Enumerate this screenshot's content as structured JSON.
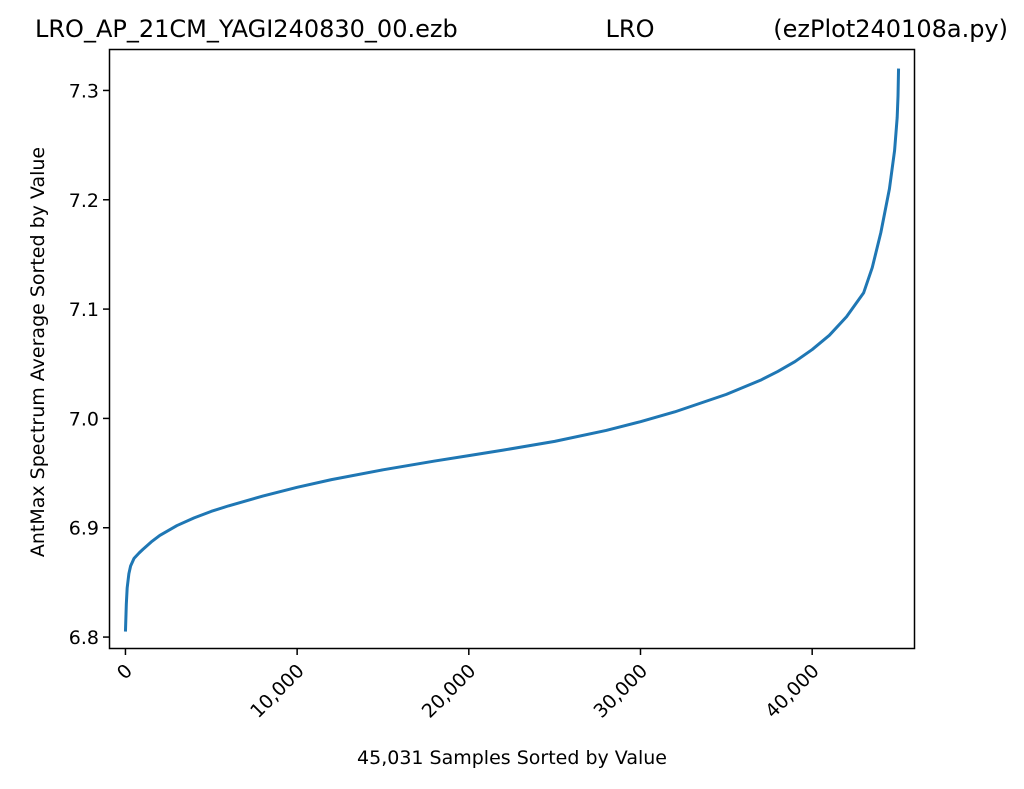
{
  "chart_data": {
    "type": "line",
    "title_left": "LRO_AP_21CM_YAGI240830_00.ezb",
    "title_center": "LRO",
    "title_right": "(ezPlot240108a.py)",
    "xlabel": "45,031 Samples Sorted by Value",
    "ylabel": "AntMax Spectrum Average Sorted by Value",
    "xlim": [
      -900,
      45931
    ],
    "ylim": [
      6.79,
      7.337
    ],
    "x_ticks": [
      0,
      10000,
      20000,
      30000,
      40000
    ],
    "x_tick_labels": [
      "0",
      "10,000",
      "20,000",
      "30,000",
      "40,000"
    ],
    "y_ticks": [
      6.8,
      6.9,
      7.0,
      7.1,
      7.2,
      7.3
    ],
    "y_tick_labels": [
      "6.8",
      "6.9",
      "7.0",
      "7.1",
      "7.2",
      "7.3"
    ],
    "grid": false,
    "series": [
      {
        "color": "#1f77b4",
        "x": [
          0,
          50,
          100,
          200,
          300,
          500,
          800,
          1000,
          1500,
          2000,
          3000,
          4000,
          5000,
          6000,
          8000,
          10000,
          12000,
          15000,
          18000,
          20000,
          22000,
          25000,
          28000,
          30000,
          32000,
          35000,
          37000,
          38000,
          39000,
          40000,
          41000,
          42000,
          43000,
          43500,
          44000,
          44500,
          44800,
          44950,
          45000,
          45031
        ],
        "y": [
          6.805,
          6.83,
          6.845,
          6.858,
          6.865,
          6.872,
          6.877,
          6.88,
          6.887,
          6.893,
          6.902,
          6.909,
          6.915,
          6.92,
          6.929,
          6.937,
          6.944,
          6.953,
          6.961,
          6.966,
          6.971,
          6.979,
          6.989,
          6.997,
          7.006,
          7.022,
          7.035,
          7.043,
          7.052,
          7.063,
          7.076,
          7.093,
          7.115,
          7.138,
          7.17,
          7.21,
          7.245,
          7.275,
          7.295,
          7.32
        ]
      }
    ]
  }
}
